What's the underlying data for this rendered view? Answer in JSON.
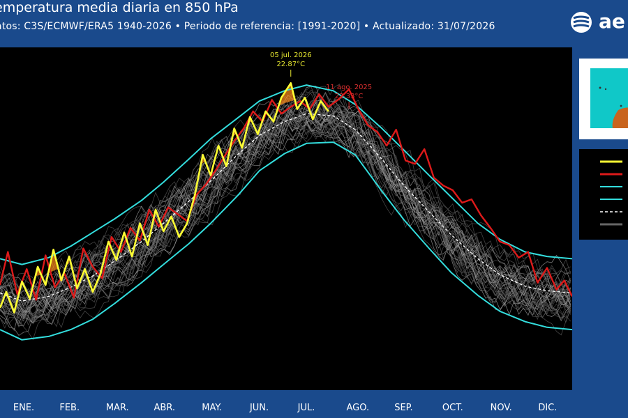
{
  "header": {
    "title": "emperatura media diaria en 850 hPa",
    "subtitle": "atos: C3S/ECMWF/ERA5 1940-2026   •   Periodo de referencia: [1991-2020]   •   Actualizado: 31/07/2026",
    "logo_text": "ae"
  },
  "colors": {
    "background": "#1a4a8c",
    "plot_bg": "#000000",
    "current_year": "#ffff33",
    "previous_year": "#dd1a1a",
    "envelope": "#33dddd",
    "mean": "#ffffff",
    "historical": "#888888",
    "shade_warm": "#ff8c1a"
  },
  "annotations": [
    {
      "date_label": "05 jul. 2026",
      "value_label": "22.87°C",
      "color": "#e8e830",
      "day": 186,
      "value": 22.87
    },
    {
      "date_label": "11 ago. 2025",
      "value_label": "22.33°C",
      "color": "#dd3030",
      "day": 223,
      "value": 22.33
    }
  ],
  "chart_data": {
    "type": "line",
    "title": "emperatura media diaria en 850 hPa",
    "xlabel": "",
    "ylabel": "",
    "months": [
      "ENE.",
      "FEB.",
      "MAR.",
      "ABR.",
      "MAY.",
      "JUN.",
      "JUL.",
      "AGO.",
      "SEP.",
      "OCT.",
      "NOV.",
      "DIC."
    ],
    "x_unit": "day of year",
    "xlim": [
      1,
      365
    ],
    "ylim": [
      -4,
      26
    ],
    "series": [
      {
        "role": "mean",
        "style": "dashed",
        "x": [
          1,
          15,
          32,
          46,
          60,
          74,
          91,
          105,
          121,
          135,
          152,
          166,
          182,
          196,
          213,
          227,
          244,
          258,
          274,
          288,
          305,
          319,
          335,
          349,
          365
        ],
        "y": [
          4.5,
          3.8,
          4.2,
          5.0,
          6.0,
          7.3,
          9.0,
          10.6,
          12.5,
          14.3,
          16.6,
          18.3,
          19.5,
          20.2,
          20.0,
          18.8,
          16.2,
          13.9,
          11.6,
          9.6,
          7.5,
          6.1,
          5.1,
          4.7,
          4.5
        ]
      },
      {
        "role": "upper-envelope",
        "x": [
          1,
          15,
          32,
          46,
          60,
          74,
          91,
          105,
          121,
          135,
          152,
          166,
          182,
          196,
          213,
          227,
          244,
          258,
          274,
          288,
          305,
          319,
          335,
          349,
          365
        ],
        "y": [
          7.5,
          7.0,
          7.6,
          8.6,
          9.8,
          11.0,
          12.6,
          14.2,
          16.2,
          18.0,
          19.8,
          21.3,
          22.2,
          22.7,
          22.2,
          21.0,
          18.9,
          17.0,
          14.8,
          12.9,
          10.6,
          9.2,
          8.1,
          7.7,
          7.5
        ]
      },
      {
        "role": "lower-envelope",
        "x": [
          1,
          15,
          32,
          46,
          60,
          74,
          91,
          105,
          121,
          135,
          152,
          166,
          182,
          196,
          213,
          227,
          244,
          258,
          274,
          288,
          305,
          319,
          335,
          349,
          365
        ],
        "y": [
          1.3,
          0.4,
          0.7,
          1.3,
          2.2,
          3.6,
          5.4,
          7.0,
          8.8,
          10.6,
          13.0,
          15.2,
          16.7,
          17.6,
          17.7,
          16.6,
          13.4,
          10.9,
          8.4,
          6.3,
          4.3,
          2.9,
          2.0,
          1.5,
          1.3
        ]
      },
      {
        "role": "current-year",
        "x": [
          1,
          5,
          10,
          15,
          20,
          25,
          30,
          35,
          40,
          45,
          50,
          55,
          60,
          65,
          70,
          75,
          80,
          85,
          90,
          95,
          100,
          105,
          110,
          115,
          120,
          125,
          130,
          135,
          140,
          145,
          150,
          155,
          160,
          165,
          170,
          175,
          180,
          186,
          190,
          195,
          200,
          205,
          210
        ],
        "y": [
          3.2,
          4.6,
          2.8,
          5.5,
          4.0,
          6.8,
          5.2,
          8.3,
          5.6,
          7.7,
          4.9,
          6.6,
          4.6,
          6.2,
          9.0,
          7.4,
          9.8,
          7.7,
          10.6,
          8.7,
          11.8,
          9.9,
          11.2,
          9.4,
          10.6,
          13.1,
          16.6,
          14.8,
          17.4,
          15.6,
          18.9,
          17.2,
          19.9,
          18.4,
          20.4,
          19.5,
          21.6,
          22.87,
          20.6,
          21.6,
          19.7,
          21.3,
          20.4
        ]
      },
      {
        "role": "previous-year",
        "x": [
          1,
          6,
          12,
          18,
          24,
          30,
          36,
          42,
          48,
          54,
          60,
          66,
          72,
          78,
          84,
          90,
          96,
          102,
          108,
          114,
          120,
          126,
          132,
          138,
          144,
          150,
          156,
          162,
          168,
          174,
          180,
          186,
          192,
          198,
          204,
          210,
          216,
          223,
          229,
          235,
          241,
          247,
          253,
          259,
          265,
          271,
          277,
          283,
          289,
          295,
          301,
          307,
          313,
          319,
          325,
          331,
          337,
          343,
          349,
          355,
          360,
          365
        ],
        "y": [
          5.2,
          8.1,
          4.4,
          6.6,
          3.9,
          7.8,
          5.0,
          6.2,
          4.1,
          8.4,
          6.8,
          5.8,
          9.4,
          8.1,
          10.2,
          9.1,
          11.8,
          10.3,
          12.0,
          11.4,
          10.8,
          13.1,
          14.0,
          15.2,
          16.5,
          17.8,
          18.9,
          20.4,
          19.5,
          21.4,
          20.2,
          20.8,
          21.3,
          20.6,
          21.9,
          20.8,
          21.4,
          22.33,
          20.6,
          19.2,
          18.6,
          17.4,
          18.8,
          16.1,
          15.8,
          17.1,
          14.6,
          13.9,
          13.5,
          12.4,
          12.7,
          11.3,
          10.2,
          9.0,
          8.7,
          7.6,
          8.1,
          5.4,
          6.7,
          4.8,
          5.6,
          4.2
        ]
      }
    ],
    "grid": false,
    "legend": "right"
  }
}
